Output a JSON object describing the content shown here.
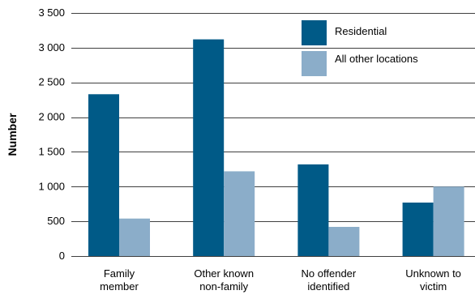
{
  "chart_data": {
    "type": "bar",
    "ylabel": "Number",
    "xlabel": "",
    "ylim": [
      0,
      3500
    ],
    "yticks": [
      0,
      500,
      1000,
      1500,
      2000,
      2500,
      3000,
      3500
    ],
    "ytick_labels": [
      "0",
      "500",
      "1 000",
      "1 500",
      "2 000",
      "2 500",
      "3 000",
      "3 500"
    ],
    "categories": [
      [
        "Family",
        "member"
      ],
      [
        "Other known",
        "non-family"
      ],
      [
        "No offender",
        "identified"
      ],
      [
        "Unknown to",
        "victim"
      ]
    ],
    "series": [
      {
        "name": "Residential",
        "color": "#005a87",
        "values": [
          2330,
          3120,
          1320,
          770
        ]
      },
      {
        "name": "All other locations",
        "color": "#8badc9",
        "values": [
          540,
          1220,
          420,
          1000
        ]
      }
    ],
    "grid": true,
    "legend_position": "top-right"
  }
}
